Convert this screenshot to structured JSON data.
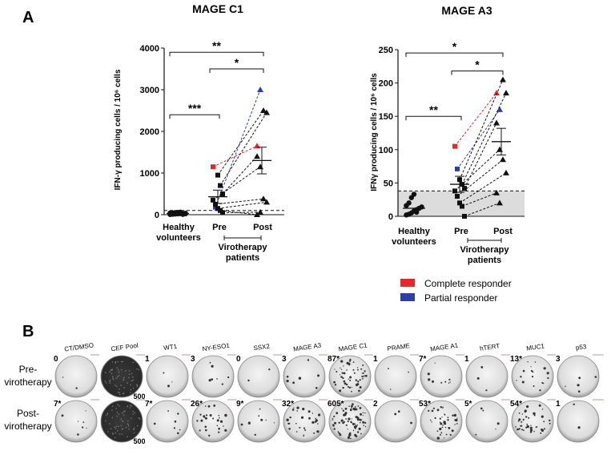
{
  "panel_labels": {
    "a": "A",
    "b": "B"
  },
  "legend": [
    {
      "label": "Complete responder",
      "color": "#e8262a"
    },
    {
      "label": "Partial responder",
      "color": "#2b3fa8"
    }
  ],
  "colors": {
    "complete": "#e8262a",
    "partial": "#2b3fa8",
    "shade": "#dcdcdc"
  },
  "chart_data": [
    {
      "type": "scatter",
      "title": "MAGE C1",
      "ylabel": "IFN-γ producing cells / 10⁶ cells",
      "ylim": [
        0,
        4000
      ],
      "yticks": [
        0,
        1000,
        2000,
        3000,
        4000
      ],
      "threshold": 100,
      "shade": false,
      "groups": {
        "healthy": {
          "label1": "Healthy",
          "label2": "volunteers"
        },
        "pre": {
          "label": "Pre"
        },
        "post": {
          "label": "Post"
        },
        "patients": {
          "label1": "Virotherapy",
          "label2": "patients"
        }
      },
      "healthy_values": [
        5,
        10,
        15,
        20,
        25,
        30,
        35,
        40,
        45,
        50,
        55,
        60,
        8,
        22
      ],
      "healthy_mean": 30,
      "pre_mean": 430,
      "pre_err": 160,
      "post_mean": 1300,
      "post_err": 320,
      "pairs": [
        {
          "pre": 1150,
          "post": 1650,
          "resp": "complete"
        },
        {
          "pre": 180,
          "post": 3000,
          "resp": "partial"
        },
        {
          "pre": 950,
          "post": 2500,
          "resp": "none"
        },
        {
          "pre": 700,
          "post": 2450,
          "resp": "none"
        },
        {
          "pre": 500,
          "post": 1400,
          "resp": "none"
        },
        {
          "pre": 350,
          "post": 1150,
          "resp": "none"
        },
        {
          "pre": 250,
          "post": 380,
          "resp": "none"
        },
        {
          "pre": 150,
          "post": 300,
          "resp": "none"
        },
        {
          "pre": 100,
          "post": 0,
          "resp": "none"
        },
        {
          "pre": 50,
          "post": 60,
          "resp": "none"
        }
      ],
      "sig": [
        {
          "from": "healthy",
          "to": "pre",
          "text": "***",
          "y": 2400
        },
        {
          "from": "healthy",
          "to": "post",
          "text": "**",
          "y": 3900
        },
        {
          "from": "pre",
          "to": "post",
          "text": "*",
          "y": 3500
        }
      ]
    },
    {
      "type": "scatter",
      "title": "MAGE A3",
      "ylabel": "IFNγ producing cells / 10⁶ cells",
      "ylim": [
        0,
        250
      ],
      "yticks": [
        0,
        50,
        100,
        150,
        200,
        250
      ],
      "threshold": 38,
      "shade": true,
      "groups": {
        "healthy": {
          "label1": "Healthy",
          "label2": "volunteers"
        },
        "pre": {
          "label": "Pre"
        },
        "post": {
          "label": "Post"
        },
        "patients": {
          "label1": "Virotherapy",
          "label2": "patients"
        }
      },
      "healthy_values": [
        2,
        3,
        5,
        8,
        10,
        12,
        14,
        16,
        20,
        28,
        33,
        6
      ],
      "healthy_mean": 12,
      "pre_mean": 48,
      "pre_err": 12,
      "post_mean": 112,
      "post_err": 20,
      "pairs": [
        {
          "pre": 105,
          "post": 185,
          "resp": "complete"
        },
        {
          "pre": 71,
          "post": 160,
          "resp": "partial"
        },
        {
          "pre": 55,
          "post": 205,
          "resp": "none"
        },
        {
          "pre": 48,
          "post": 185,
          "resp": "none"
        },
        {
          "pre": 42,
          "post": 140,
          "resp": "none"
        },
        {
          "pre": 38,
          "post": 100,
          "resp": "none"
        },
        {
          "pre": 30,
          "post": 85,
          "resp": "none"
        },
        {
          "pre": 20,
          "post": 65,
          "resp": "none"
        },
        {
          "pre": 15,
          "post": 35,
          "resp": "none"
        },
        {
          "pre": 0,
          "post": 20,
          "resp": "none"
        }
      ],
      "sig": [
        {
          "from": "healthy",
          "to": "pre",
          "text": "**",
          "y": 150
        },
        {
          "from": "healthy",
          "to": "post",
          "text": "*",
          "y": 245
        },
        {
          "from": "pre",
          "to": "post",
          "text": "*",
          "y": 218
        }
      ]
    }
  ],
  "elispot": {
    "antigens": [
      "CT/DMSO",
      "CEF Pool",
      "WT1",
      "NY-ESO1",
      "SSX2",
      "MAGE A3",
      "MAGE C1",
      "PRAME",
      "MAGE A1",
      "hTERT",
      "MUC1",
      "p53"
    ],
    "rows": [
      {
        "label1": "Pre-",
        "label2": "virotherapy",
        "counts": [
          "0",
          "",
          "1",
          "3",
          "0",
          "3",
          "87*",
          "1",
          "7*",
          "1",
          "13*",
          "3"
        ],
        "saturated": "500",
        "density": [
          0.02,
          1,
          0.03,
          0.08,
          0.02,
          0.08,
          0.6,
          0.03,
          0.1,
          0.03,
          0.2,
          0.05
        ]
      },
      {
        "label1": "Post-",
        "label2": "virotherapy",
        "counts": [
          "7*",
          "",
          "7*",
          "26*",
          "9*",
          "32*",
          "605*",
          "2",
          "53*",
          "5*",
          "54*",
          "1"
        ],
        "saturated": "500",
        "density": [
          0.08,
          1,
          0.08,
          0.3,
          0.1,
          0.35,
          0.85,
          0.03,
          0.45,
          0.06,
          0.45,
          0.02
        ]
      }
    ]
  }
}
